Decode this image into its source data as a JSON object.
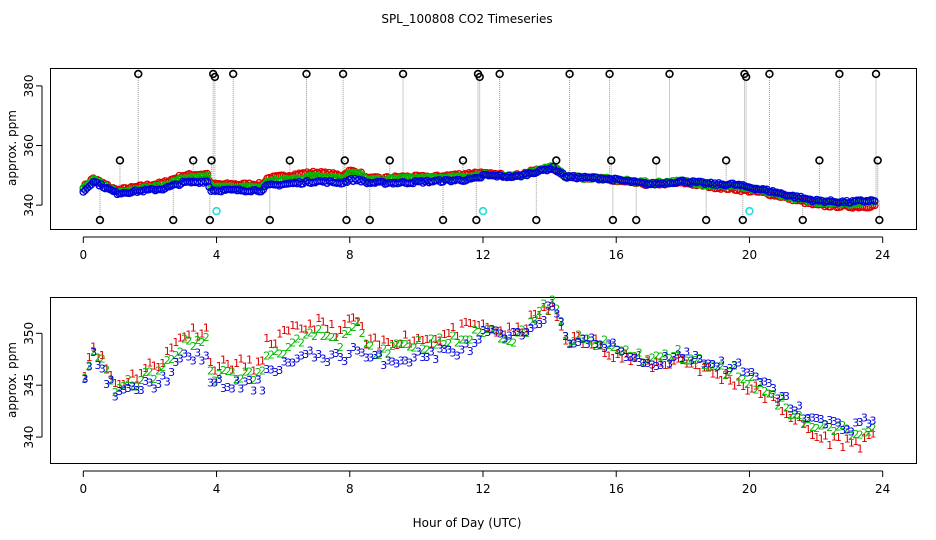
{
  "chart_data": {
    "title": "SPL_100808  CO2 Timeseries",
    "xlabel": "Hour of Day (UTC)",
    "colors": {
      "s1": "#dd0000",
      "s2": "#00bb00",
      "s3": "#0000dd",
      "black": "#000000",
      "cyan": "#22dddd",
      "drop": "#999999"
    },
    "panels": [
      {
        "type": "scatter",
        "ylabel": "approx. ppm",
        "xlim": [
          -1,
          25
        ],
        "ylim": [
          332,
          386
        ],
        "xticks": [
          "0",
          "4",
          "8",
          "12",
          "16",
          "20",
          "24"
        ],
        "yticks": [
          "340",
          "360",
          "380"
        ],
        "spikes": [
          [
            0.5,
            335
          ],
          [
            1.1,
            355
          ],
          [
            1.65,
            384
          ],
          [
            2.7,
            335
          ],
          [
            3.3,
            355
          ],
          [
            3.8,
            335
          ],
          [
            3.85,
            355
          ],
          [
            3.9,
            384
          ],
          [
            3.95,
            383
          ],
          [
            4.5,
            384
          ],
          [
            5.6,
            335
          ],
          [
            6.2,
            355
          ],
          [
            6.7,
            384
          ],
          [
            7.8,
            384
          ],
          [
            7.85,
            355
          ],
          [
            7.9,
            335
          ],
          [
            8.6,
            335
          ],
          [
            9.2,
            355
          ],
          [
            9.6,
            384
          ],
          [
            10.8,
            335
          ],
          [
            11.4,
            355
          ],
          [
            11.8,
            335
          ],
          [
            11.85,
            384
          ],
          [
            11.9,
            383
          ],
          [
            12.5,
            384
          ],
          [
            13.6,
            335
          ],
          [
            14.2,
            355
          ],
          [
            14.6,
            384
          ],
          [
            15.8,
            384
          ],
          [
            15.85,
            355
          ],
          [
            15.9,
            335
          ],
          [
            16.6,
            335
          ],
          [
            17.2,
            355
          ],
          [
            17.6,
            384
          ],
          [
            18.7,
            335
          ],
          [
            19.3,
            355
          ],
          [
            19.8,
            335
          ],
          [
            19.85,
            384
          ],
          [
            19.9,
            383
          ],
          [
            20.6,
            384
          ],
          [
            21.6,
            335
          ],
          [
            22.1,
            355
          ],
          [
            22.7,
            384
          ],
          [
            23.8,
            384
          ],
          [
            23.85,
            355
          ],
          [
            23.9,
            335
          ]
        ],
        "cyan_points": [
          [
            4.0,
            338
          ],
          [
            12.0,
            338
          ],
          [
            20.0,
            338
          ]
        ]
      },
      {
        "type": "scatter",
        "ylabel": "approx. ppm",
        "xlim": [
          -1,
          25
        ],
        "ylim": [
          337.5,
          353.5
        ],
        "xticks": [
          "0",
          "4",
          "8",
          "12",
          "16",
          "20",
          "24"
        ],
        "yticks": [
          "340",
          "345",
          "350"
        ],
        "marker_symbols": [
          "1",
          "2",
          "3"
        ]
      }
    ],
    "series": [
      {
        "name": "1",
        "color": "#dd0000",
        "knots": [
          [
            0,
            346
          ],
          [
            0.3,
            349
          ],
          [
            1,
            345
          ],
          [
            2.4,
            347.5
          ],
          [
            3,
            350
          ],
          [
            3.75,
            350.5
          ],
          [
            3.8,
            347
          ],
          [
            4.5,
            347
          ],
          [
            5.4,
            347
          ],
          [
            5.5,
            349
          ],
          [
            6.5,
            350.5
          ],
          [
            7,
            351
          ],
          [
            7.8,
            350
          ],
          [
            8,
            351.5
          ],
          [
            8.3,
            351
          ],
          [
            8.5,
            349
          ],
          [
            9,
            349
          ],
          [
            9.5,
            349.5
          ],
          [
            10.5,
            349.5
          ],
          [
            11.5,
            350.5
          ],
          [
            11.9,
            351
          ],
          [
            12,
            350.5
          ],
          [
            13,
            350
          ],
          [
            13.7,
            352
          ],
          [
            14.1,
            352.5
          ],
          [
            14.5,
            349.5
          ],
          [
            15.5,
            349
          ],
          [
            16,
            348
          ],
          [
            17,
            347
          ],
          [
            18,
            347.5
          ],
          [
            19,
            346
          ],
          [
            19.5,
            345.5
          ],
          [
            20.5,
            344
          ],
          [
            21.3,
            342
          ],
          [
            22,
            340
          ],
          [
            23,
            339.5
          ],
          [
            23.5,
            339.5
          ],
          [
            23.8,
            340
          ]
        ]
      },
      {
        "name": "2",
        "color": "#00bb00",
        "knots": [
          [
            0,
            345.5
          ],
          [
            0.3,
            348.5
          ],
          [
            1,
            344.5
          ],
          [
            2.4,
            346.5
          ],
          [
            3,
            349
          ],
          [
            3.75,
            349.5
          ],
          [
            3.8,
            346
          ],
          [
            4.5,
            346
          ],
          [
            5.4,
            346
          ],
          [
            5.5,
            348
          ],
          [
            6.5,
            349
          ],
          [
            7,
            350
          ],
          [
            7.8,
            349
          ],
          [
            8,
            351
          ],
          [
            8.3,
            350.5
          ],
          [
            8.5,
            348.5
          ],
          [
            9,
            348.5
          ],
          [
            9.5,
            349
          ],
          [
            10.5,
            349
          ],
          [
            11.5,
            349.5
          ],
          [
            11.9,
            350
          ],
          [
            12,
            350.5
          ],
          [
            13,
            349.5
          ],
          [
            13.7,
            352
          ],
          [
            14.1,
            353
          ],
          [
            14.5,
            349.5
          ],
          [
            15.5,
            349
          ],
          [
            16,
            348.5
          ],
          [
            17,
            347.5
          ],
          [
            18,
            348
          ],
          [
            19,
            346.5
          ],
          [
            19.5,
            346.5
          ],
          [
            20.5,
            344.5
          ],
          [
            21.3,
            342.5
          ],
          [
            22,
            341
          ],
          [
            23,
            340.5
          ],
          [
            23.5,
            341
          ],
          [
            23.8,
            341.5
          ]
        ]
      },
      {
        "name": "3",
        "color": "#0000dd",
        "knots": [
          [
            0,
            344.5
          ],
          [
            0.3,
            348
          ],
          [
            1,
            344
          ],
          [
            2.4,
            345.5
          ],
          [
            3,
            347.5
          ],
          [
            3.75,
            348
          ],
          [
            3.8,
            345
          ],
          [
            4.5,
            345
          ],
          [
            5.4,
            345
          ],
          [
            5.5,
            346.5
          ],
          [
            6.5,
            347.5
          ],
          [
            7,
            348
          ],
          [
            7.8,
            347.5
          ],
          [
            8,
            348.5
          ],
          [
            8.3,
            348.5
          ],
          [
            8.5,
            347.5
          ],
          [
            9,
            347.5
          ],
          [
            9.5,
            347.5
          ],
          [
            10.5,
            348
          ],
          [
            11.5,
            348.5
          ],
          [
            11.9,
            349
          ],
          [
            12,
            350
          ],
          [
            13,
            349.5
          ],
          [
            13.7,
            351.5
          ],
          [
            14.1,
            352.5
          ],
          [
            14.5,
            349.5
          ],
          [
            15.5,
            349
          ],
          [
            16,
            348.5
          ],
          [
            17,
            347
          ],
          [
            18,
            348
          ],
          [
            19,
            347
          ],
          [
            19.5,
            347
          ],
          [
            20.5,
            345
          ],
          [
            21.3,
            343
          ],
          [
            22,
            341.5
          ],
          [
            23,
            341
          ],
          [
            23.5,
            341.5
          ],
          [
            23.8,
            341.5
          ]
        ]
      }
    ]
  }
}
